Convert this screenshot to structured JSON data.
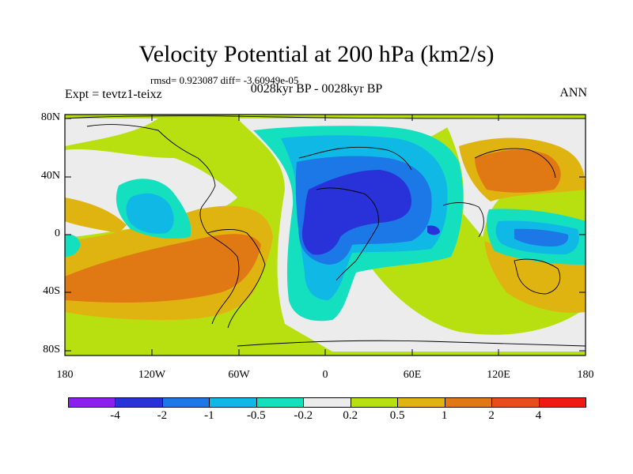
{
  "title": "Velocity Potential at 200 hPa (km2/s)",
  "stats": "rmsd= 0.923087 diff= -3.60949e-05",
  "experiment": "Expt = tevtz1-teixz",
  "period": "0028kyr BP - 0028kyr BP",
  "season": "ANN",
  "lat_labels": [
    "80N",
    "40N",
    "0",
    "40S",
    "80S"
  ],
  "lon_labels": [
    "180",
    "120W",
    "60W",
    "0",
    "60E",
    "120E",
    "180"
  ],
  "colorbar": {
    "colors": [
      "#8b1ff0",
      "#2832d8",
      "#1c78e6",
      "#10b8e6",
      "#14e0c0",
      "#ececec",
      "#b8e010",
      "#e0b410",
      "#e07814",
      "#e84c1c",
      "#f01a14"
    ],
    "labels": [
      "-4",
      "-2",
      "-1",
      "-0.5",
      "-0.2",
      "0.2",
      "0.5",
      "1",
      "2",
      "4"
    ]
  }
}
